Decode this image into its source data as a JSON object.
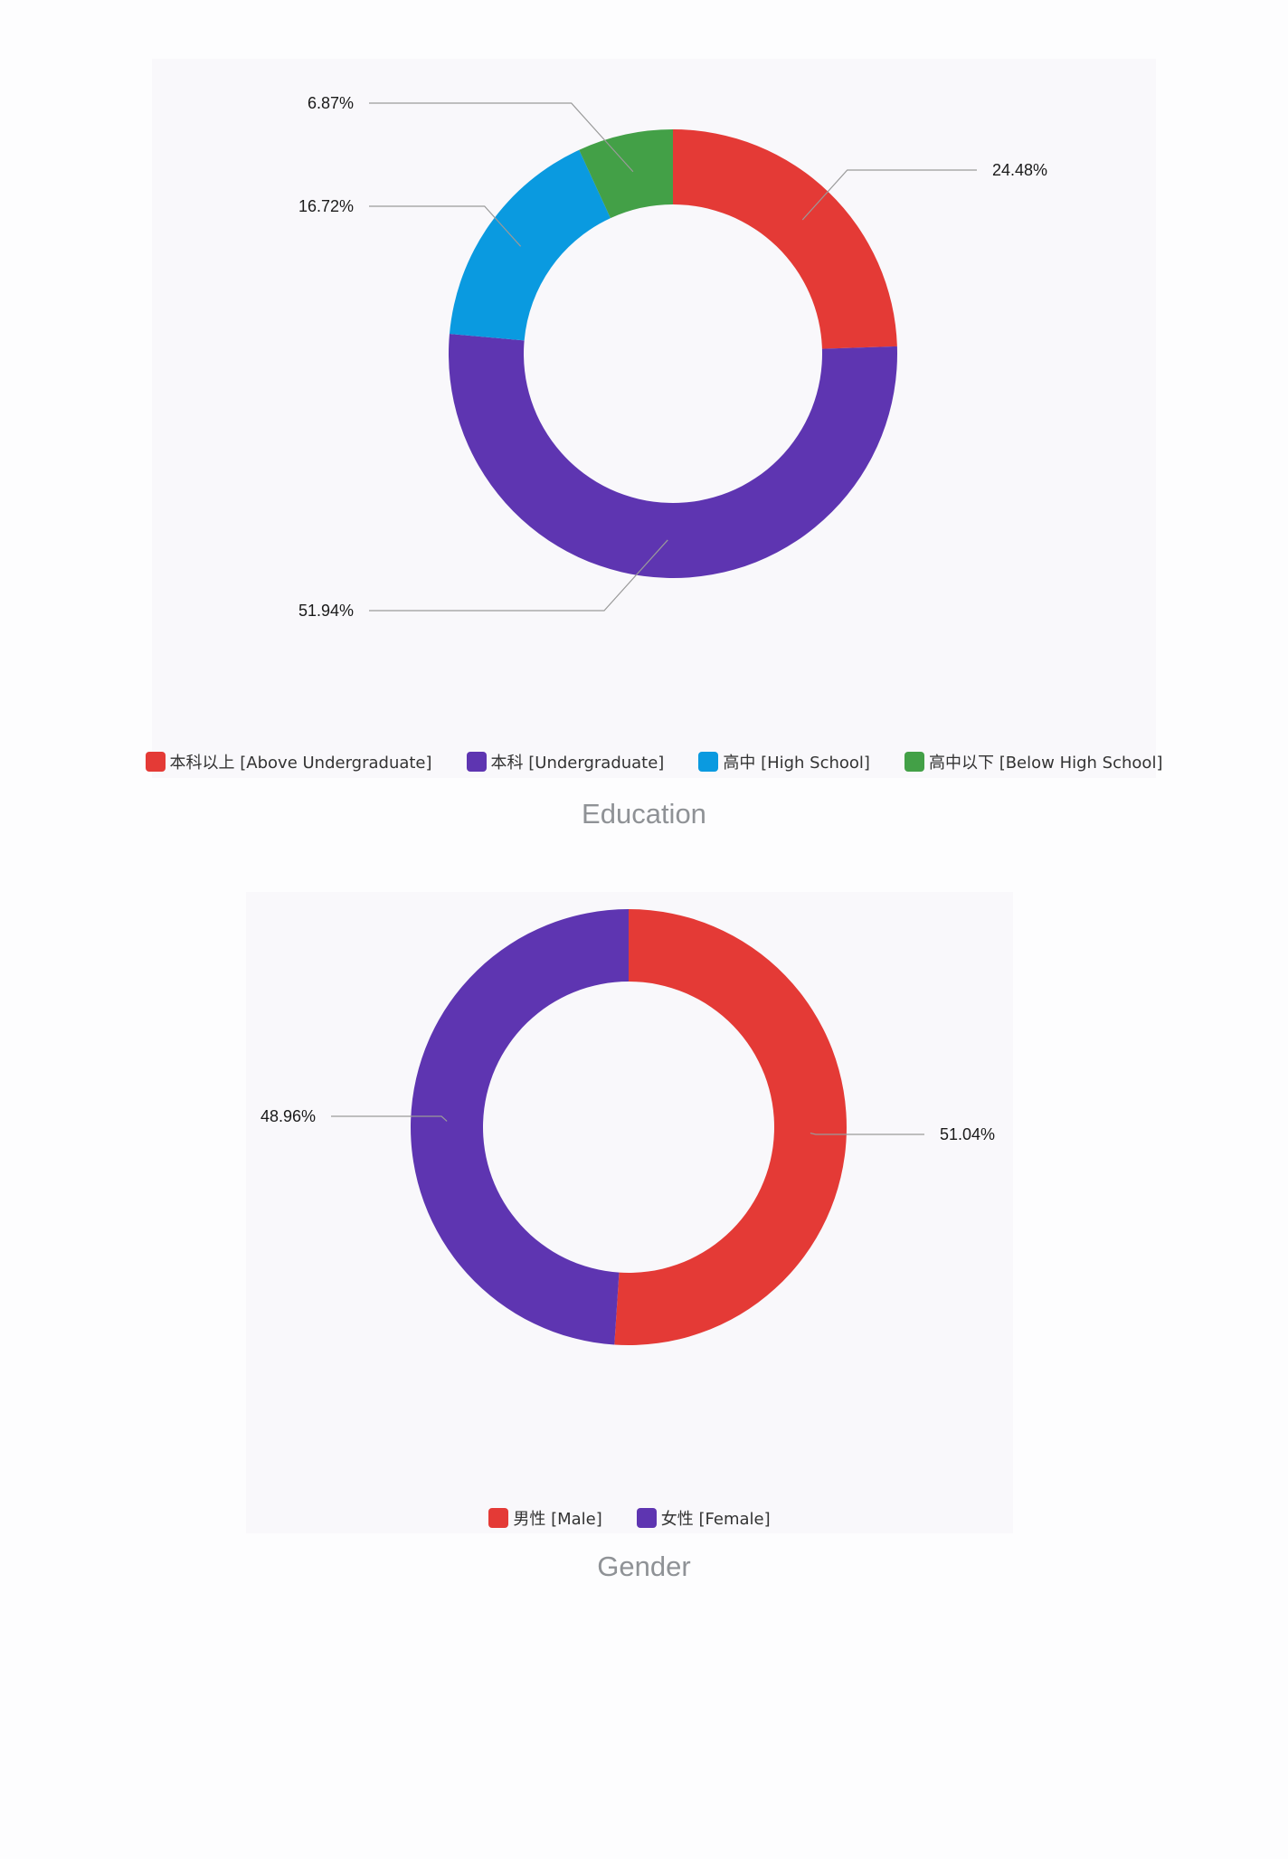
{
  "chart_data": [
    {
      "type": "pie",
      "title": "Education",
      "categories": [
        "本科以上 [Above Undergraduate]",
        "本科 [Undergraduate]",
        "高中 [High School]",
        "高中以下 [Below High School]"
      ],
      "values": [
        24.48,
        51.94,
        16.72,
        6.87
      ],
      "labels": [
        "24.48%",
        "51.94%",
        "16.72%",
        "6.87%"
      ],
      "colors": [
        "#e43a36",
        "#5e35b1",
        "#0a9ae0",
        "#43a047"
      ],
      "donut": true,
      "legend": "bottom"
    },
    {
      "type": "pie",
      "title": "Gender",
      "categories": [
        "男性 [Male]",
        "女性 [Female]"
      ],
      "values": [
        51.04,
        48.96
      ],
      "labels": [
        "51.04%",
        "48.96%"
      ],
      "colors": [
        "#e43a36",
        "#5e35b1"
      ],
      "donut": true,
      "legend": "bottom"
    }
  ]
}
